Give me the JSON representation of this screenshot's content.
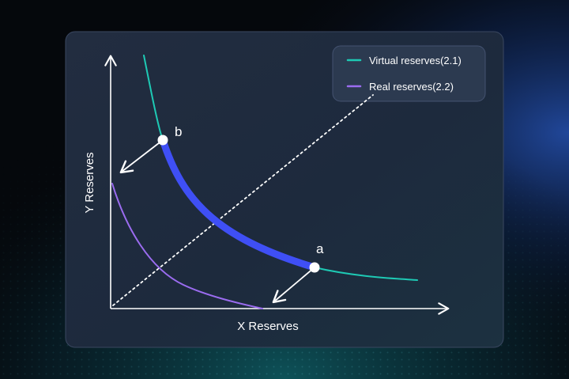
{
  "diagram": {
    "legend": [
      {
        "label": "Virtual reserves(2.1)",
        "color": "#1ec9b4"
      },
      {
        "label": "Real reserves(2.2)",
        "color": "#9b6cf0"
      }
    ],
    "x_axis_label": "X Reserves",
    "y_axis_label": "Y Reserves",
    "points": {
      "a": "a",
      "b": "b"
    },
    "colors": {
      "highlight_segment": "#3f4ff5",
      "diagonal": "#ffffff",
      "axes": "#ffffff",
      "panel_background": "#1f2b3f"
    }
  }
}
